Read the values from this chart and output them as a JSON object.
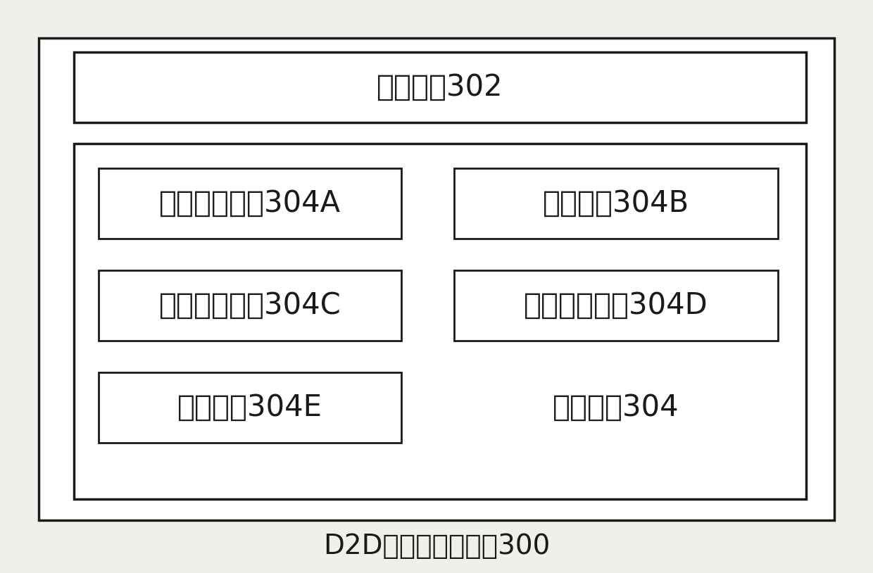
{
  "bg_color": "#f0f0eb",
  "outer_box_color": "#1a1a1a",
  "inner_box_color": "#1a1a1a",
  "small_box_color": "#1a1a1a",
  "text_color": "#1a1a1a",
  "box_fill": "#ffffff",
  "title_text": "D2D中继通信的装置300",
  "unit302_text": "获取单元302",
  "unit304A_text": "第一判断单元304A",
  "unit304B_text": "选择单元304B",
  "unit304C_text": "第二判断单元304C",
  "unit304D_text": "网络切换单元304D",
  "unit304E_text": "触发单元304E",
  "unit304_text": "处理单元304",
  "font_size_large": 30,
  "font_size_title": 28,
  "lw_outer": 2.5,
  "lw_inner": 2.5,
  "lw_small": 2.0
}
